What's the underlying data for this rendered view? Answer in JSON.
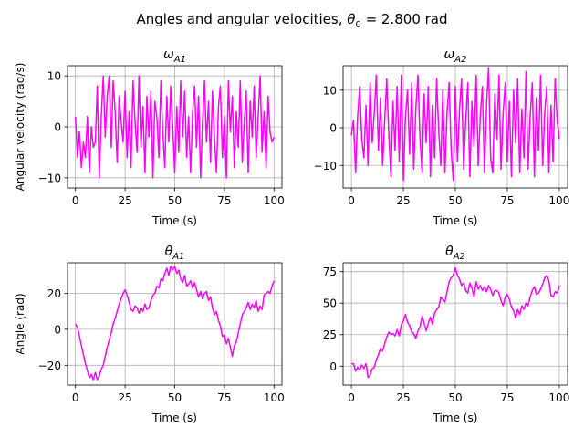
{
  "figure": {
    "title_prefix": "Angles and angular velocities, ",
    "title_symbol": "θ",
    "title_sub": "0",
    "title_suffix": "  = 2.800 rad",
    "line_color": "#ff00ff",
    "grid": true
  },
  "chart_data": [
    {
      "type": "line",
      "title_main": "ω",
      "title_sub": "A1",
      "xlabel": "Time (s)",
      "ylabel": "Angular velocity (rad/s)",
      "xlim": [
        -4,
        104
      ],
      "ylim": [
        -12,
        12
      ],
      "xticks": [
        0,
        25,
        50,
        75,
        100
      ],
      "yticks": [
        -10,
        0,
        10
      ],
      "series": [
        {
          "x": [
            0,
            1,
            2,
            3,
            4,
            5,
            6,
            7,
            8,
            9,
            10,
            11,
            12,
            13,
            14,
            15,
            16,
            17,
            18,
            19,
            20,
            21,
            22,
            23,
            24,
            25,
            26,
            27,
            28,
            29,
            30,
            31,
            32,
            33,
            34,
            35,
            36,
            37,
            38,
            39,
            40,
            41,
            42,
            43,
            44,
            45,
            46,
            47,
            48,
            49,
            50,
            51,
            52,
            53,
            54,
            55,
            56,
            57,
            58,
            59,
            60,
            61,
            62,
            63,
            64,
            65,
            66,
            67,
            68,
            69,
            70,
            71,
            72,
            73,
            74,
            75,
            76,
            77,
            78,
            79,
            80,
            81,
            82,
            83,
            84,
            85,
            86,
            87,
            88,
            89,
            90,
            91,
            92,
            93,
            94,
            95,
            96,
            97,
            98,
            99,
            100
          ],
          "y": [
            2,
            -6,
            -1,
            -8,
            -3,
            -6,
            2,
            -9,
            0,
            -4,
            -3,
            8,
            -10,
            2,
            10,
            -2,
            6,
            10,
            -4,
            9,
            3,
            -7,
            6,
            1,
            -3,
            7,
            -6,
            3,
            -8,
            9,
            1,
            -5,
            10,
            -4,
            4,
            -9,
            6,
            -2,
            7,
            -10,
            5,
            2,
            -6,
            9,
            -1,
            -8,
            6,
            -3,
            8,
            0,
            -9,
            4,
            -5,
            9,
            -2,
            7,
            -6,
            2,
            -9,
            3,
            8,
            -4,
            6,
            -10,
            1,
            9,
            -3,
            5,
            -7,
            7,
            -2,
            -9,
            4,
            8,
            -6,
            2,
            -10,
            9,
            -1,
            6,
            -8,
            3,
            -4,
            9,
            -7,
            1,
            7,
            -9,
            5,
            -2,
            8,
            -6,
            2,
            10,
            -5,
            3,
            -8,
            6,
            -1,
            -3,
            -2
          ]
        }
      ]
    },
    {
      "type": "line",
      "title_main": "ω",
      "title_sub": "A2",
      "xlabel": "Time (s)",
      "ylabel": "",
      "xlim": [
        -4,
        104
      ],
      "ylim": [
        -16,
        16.5
      ],
      "xticks": [
        0,
        25,
        50,
        75,
        100
      ],
      "yticks": [
        -10,
        0,
        10
      ],
      "series": [
        {
          "x": [
            0,
            1,
            2,
            3,
            4,
            5,
            6,
            7,
            8,
            9,
            10,
            11,
            12,
            13,
            14,
            15,
            16,
            17,
            18,
            19,
            20,
            21,
            22,
            23,
            24,
            25,
            26,
            27,
            28,
            29,
            30,
            31,
            32,
            33,
            34,
            35,
            36,
            37,
            38,
            39,
            40,
            41,
            42,
            43,
            44,
            45,
            46,
            47,
            48,
            49,
            50,
            51,
            52,
            53,
            54,
            55,
            56,
            57,
            58,
            59,
            60,
            61,
            62,
            63,
            64,
            65,
            66,
            67,
            68,
            69,
            70,
            71,
            72,
            73,
            74,
            75,
            76,
            77,
            78,
            79,
            80,
            81,
            82,
            83,
            84,
            85,
            86,
            87,
            88,
            89,
            90,
            91,
            92,
            93,
            94,
            95,
            96,
            97,
            98,
            99,
            100
          ],
          "y": [
            -2,
            2,
            -12,
            3,
            11,
            -3,
            -8,
            6,
            -10,
            12,
            -4,
            4,
            14,
            -6,
            8,
            -10,
            2,
            13,
            -2,
            -13,
            7,
            -6,
            11,
            -9,
            14,
            -14,
            3,
            10,
            -7,
            12,
            -11,
            5,
            14,
            -3,
            -12,
            9,
            -4,
            11,
            -13,
            6,
            -8,
            13,
            -1,
            -10,
            10,
            -12,
            4,
            12,
            -6,
            -14,
            11,
            -9,
            5,
            13,
            -11,
            2,
            12,
            -13,
            7,
            -5,
            14,
            -10,
            3,
            11,
            -12,
            6,
            16,
            -8,
            -12,
            9,
            -3,
            14,
            -11,
            4,
            12,
            -9,
            7,
            -13,
            10,
            -4,
            13,
            -12,
            5,
            -8,
            15,
            -11,
            3,
            12,
            -13,
            8,
            -6,
            14,
            -10,
            4,
            11,
            -12,
            6,
            -9,
            13,
            2,
            -3
          ]
        }
      ]
    },
    {
      "type": "line",
      "title_main": "θ",
      "title_sub": "A1",
      "xlabel": "Time (s)",
      "ylabel": "Angle (rad)",
      "xlim": [
        -4,
        104
      ],
      "ylim": [
        -31,
        37
      ],
      "xticks": [
        0,
        25,
        50,
        75,
        100
      ],
      "yticks": [
        -20,
        0,
        20
      ],
      "series": [
        {
          "x": [
            0,
            1,
            2,
            3,
            4,
            5,
            6,
            7,
            8,
            9,
            10,
            11,
            12,
            13,
            14,
            15,
            16,
            17,
            18,
            19,
            20,
            21,
            22,
            23,
            24,
            25,
            26,
            27,
            28,
            29,
            30,
            31,
            32,
            33,
            34,
            35,
            36,
            37,
            38,
            39,
            40,
            41,
            42,
            43,
            44,
            45,
            46,
            47,
            48,
            49,
            50,
            51,
            52,
            53,
            54,
            55,
            56,
            57,
            58,
            59,
            60,
            61,
            62,
            63,
            64,
            65,
            66,
            67,
            68,
            69,
            70,
            71,
            72,
            73,
            74,
            75,
            76,
            77,
            78,
            79,
            80,
            81,
            82,
            83,
            84,
            85,
            86,
            87,
            88,
            89,
            90,
            91,
            92,
            93,
            94,
            95,
            96,
            97,
            98,
            99,
            100
          ],
          "y": [
            3,
            1,
            -4,
            -9,
            -14,
            -19,
            -23,
            -27,
            -25,
            -28,
            -24,
            -28,
            -26,
            -22,
            -20,
            -15,
            -10,
            -6,
            -2,
            3,
            6,
            10,
            14,
            17,
            20,
            22,
            19,
            15,
            11,
            10,
            13,
            12,
            9,
            12,
            10,
            14,
            11,
            12,
            16,
            19,
            20,
            24,
            23,
            28,
            27,
            31,
            34,
            30,
            35,
            33,
            35,
            31,
            33,
            28,
            26,
            30,
            24,
            25,
            27,
            23,
            26,
            22,
            18,
            21,
            17,
            20,
            21,
            16,
            18,
            12,
            8,
            10,
            5,
            2,
            -4,
            -3,
            -8,
            -5,
            -10,
            -15,
            -9,
            -7,
            -2,
            3,
            8,
            10,
            12,
            15,
            11,
            14,
            12,
            16,
            10,
            13,
            11,
            19,
            20,
            21,
            20,
            24,
            27
          ]
        }
      ]
    },
    {
      "type": "line",
      "title_main": "θ",
      "title_sub": "A2",
      "xlabel": "Time (s)",
      "ylabel": "",
      "xlim": [
        -4,
        104
      ],
      "ylim": [
        -15,
        82
      ],
      "xticks": [
        0,
        25,
        50,
        75,
        100
      ],
      "yticks": [
        0,
        25,
        50,
        75
      ],
      "series": [
        {
          "x": [
            0,
            1,
            2,
            3,
            4,
            5,
            6,
            7,
            8,
            9,
            10,
            11,
            12,
            13,
            14,
            15,
            16,
            17,
            18,
            19,
            20,
            21,
            22,
            23,
            24,
            25,
            26,
            27,
            28,
            29,
            30,
            31,
            32,
            33,
            34,
            35,
            36,
            37,
            38,
            39,
            40,
            41,
            42,
            43,
            44,
            45,
            46,
            47,
            48,
            49,
            50,
            51,
            52,
            53,
            54,
            55,
            56,
            57,
            58,
            59,
            60,
            61,
            62,
            63,
            64,
            65,
            66,
            67,
            68,
            69,
            70,
            71,
            72,
            73,
            74,
            75,
            76,
            77,
            78,
            79,
            80,
            81,
            82,
            83,
            84,
            85,
            86,
            87,
            88,
            89,
            90,
            91,
            92,
            93,
            94,
            95,
            96,
            97,
            98,
            99,
            100
          ],
          "y": [
            2,
            2,
            -4,
            -1,
            -3,
            1,
            -2,
            2,
            -9,
            -7,
            -2,
            -1,
            5,
            9,
            14,
            12,
            18,
            23,
            27,
            25,
            26,
            24,
            29,
            24,
            33,
            36,
            41,
            35,
            32,
            27,
            26,
            22,
            28,
            31,
            40,
            34,
            28,
            34,
            39,
            33,
            42,
            45,
            47,
            55,
            53,
            51,
            59,
            67,
            70,
            72,
            78,
            72,
            69,
            64,
            66,
            60,
            58,
            66,
            62,
            55,
            67,
            61,
            64,
            60,
            63,
            59,
            64,
            61,
            56,
            60,
            60,
            58,
            52,
            48,
            55,
            57,
            53,
            47,
            44,
            38,
            45,
            41,
            48,
            45,
            50,
            48,
            55,
            60,
            63,
            57,
            58,
            61,
            65,
            70,
            72,
            68,
            56,
            55,
            59,
            58,
            64
          ]
        }
      ]
    }
  ]
}
